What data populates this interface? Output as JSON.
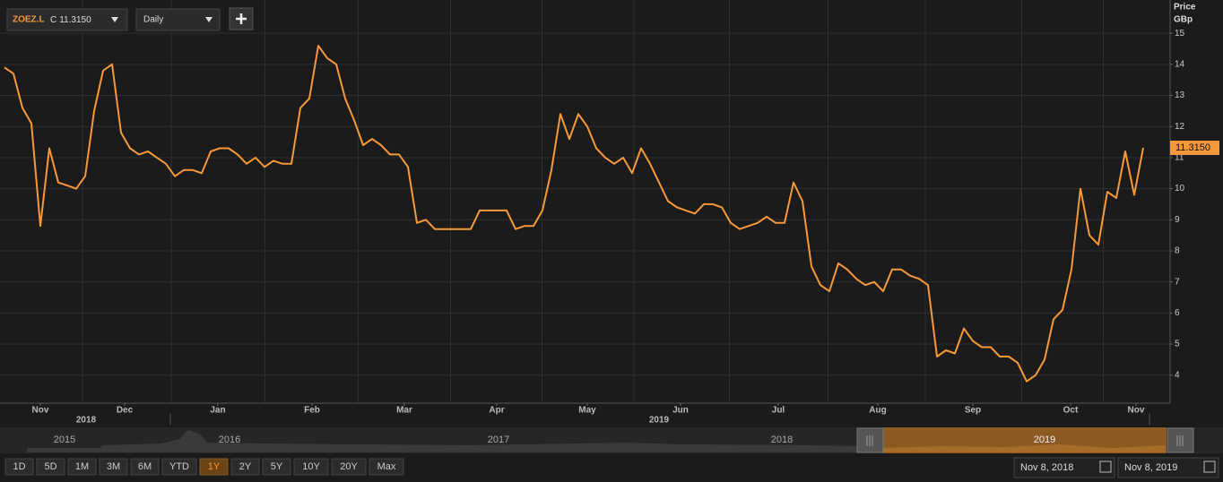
{
  "chart_data": {
    "type": "line",
    "color": "#f7993a",
    "values": [
      13.9,
      13.7,
      12.6,
      12.1,
      8.8,
      11.3,
      10.2,
      10.1,
      10.0,
      10.4,
      12.5,
      13.8,
      14.0,
      11.8,
      11.3,
      11.1,
      11.2,
      11.0,
      10.8,
      10.4,
      10.6,
      10.6,
      10.5,
      11.2,
      11.3,
      11.3,
      11.1,
      10.8,
      11.0,
      10.7,
      10.9,
      10.8,
      10.8,
      12.6,
      12.9,
      14.6,
      14.2,
      14.0,
      12.9,
      12.2,
      11.4,
      11.6,
      11.4,
      11.1,
      11.1,
      10.7,
      8.9,
      9.0,
      8.7,
      8.7,
      8.7,
      8.7,
      8.7,
      9.3,
      9.3,
      9.3,
      9.3,
      8.7,
      8.8,
      8.8,
      9.3,
      10.6,
      12.4,
      11.6,
      12.4,
      12.0,
      11.3,
      11.0,
      10.8,
      11.0,
      10.5,
      11.3,
      10.8,
      10.2,
      9.6,
      9.4,
      9.3,
      9.2,
      9.5,
      9.5,
      9.4,
      8.9,
      8.7,
      8.8,
      8.9,
      9.1,
      8.9,
      8.9,
      10.2,
      9.6,
      7.5,
      6.9,
      6.7,
      7.6,
      7.4,
      7.1,
      6.9,
      7.0,
      6.7,
      7.4,
      7.4,
      7.2,
      7.1,
      6.9,
      4.6,
      4.8,
      4.7,
      5.5,
      5.1,
      4.9,
      4.9,
      4.6,
      4.6,
      4.4,
      3.8,
      4.0,
      4.5,
      5.8,
      6.1,
      7.4,
      10.0,
      8.5,
      8.2,
      9.9,
      9.7,
      11.2,
      9.8,
      11.315
    ],
    "xlim": [
      -0.5,
      130
    ],
    "xticks": [
      {
        "value": 4,
        "label": "Nov"
      },
      {
        "value": 13.4,
        "label": "Dec"
      },
      {
        "value": 23.8,
        "label": "Jan"
      },
      {
        "value": 34.3,
        "label": "Feb"
      },
      {
        "value": 44.6,
        "label": "Mar"
      },
      {
        "value": 54.9,
        "label": "Apr"
      },
      {
        "value": 65,
        "label": "May"
      },
      {
        "value": 75.4,
        "label": "Jun"
      },
      {
        "value": 86.3,
        "label": "Jul"
      },
      {
        "value": 97.4,
        "label": "Aug"
      },
      {
        "value": 108,
        "label": "Sep"
      },
      {
        "value": 118.9,
        "label": "Oct"
      },
      {
        "value": 126.2,
        "label": "Nov"
      }
    ],
    "year_ticks": [
      {
        "value": 9.1,
        "label": "2018"
      },
      {
        "value": 73,
        "label": "2019"
      }
    ],
    "ylim": [
      3.1,
      16.07
    ],
    "yticks": [
      4,
      5,
      6,
      7,
      8,
      9,
      10,
      11,
      12,
      13,
      14,
      15
    ],
    "y_axis_title": "Price",
    "y_axis_unit": "GBp",
    "last_price": {
      "value": 11.315,
      "label": "11.3150"
    },
    "grid": true
  },
  "ui": {
    "ticker": "ZOEZ.L",
    "close_prefix": "C",
    "interval": "Daily",
    "navigator_years": [
      "2015",
      "2016",
      "2017",
      "2018",
      "2019"
    ],
    "ranges": [
      "1D",
      "5D",
      "1M",
      "3M",
      "6M",
      "YTD",
      "1Y",
      "2Y",
      "5Y",
      "10Y",
      "20Y",
      "Max"
    ],
    "active_range": "1Y",
    "date_from": "Nov 8, 2018",
    "date_to": "Nov 8, 2019"
  }
}
